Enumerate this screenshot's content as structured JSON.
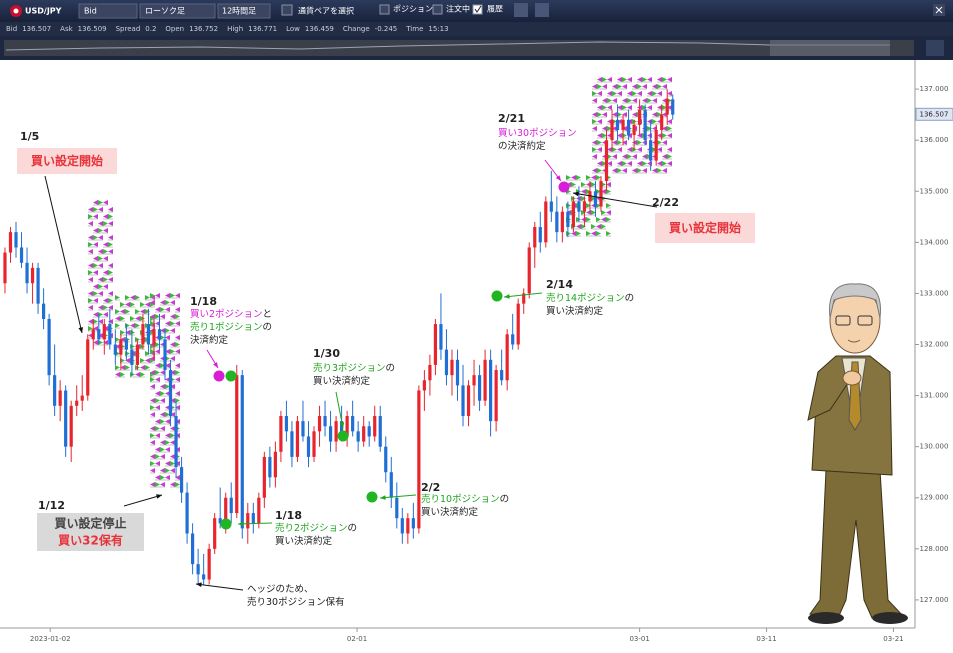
{
  "toolbar": {
    "symbol": "USD/JPY",
    "price_type": "Bid",
    "chart_type": "ローソク足",
    "period": "12時間足",
    "pair_select": "通貨ペアを選択",
    "checkboxes": [
      "ポジション",
      "注文中",
      "履歴"
    ]
  },
  "quote": [
    {
      "label": "Bid",
      "value": 136.507
    },
    {
      "label": "Ask",
      "value": 136.509
    },
    {
      "label": "Spread",
      "value": 0.2
    },
    {
      "label": "Open",
      "value": 136.752
    },
    {
      "label": "High",
      "value": 136.771
    },
    {
      "label": "Low",
      "value": 136.459
    },
    {
      "label": "Change",
      "value": -0.245
    },
    {
      "label": "Time",
      "value": "15:13"
    }
  ],
  "chart_data": {
    "type": "candlestick",
    "up_color": "#e8252d",
    "down_color": "#1f6fd6",
    "xlim": [
      0.1,
      165.9
    ],
    "xticks": [
      {
        "value": 9.2,
        "label": "2023-01-02"
      },
      {
        "value": 64.8,
        "label": "02-01"
      },
      {
        "value": 116,
        "label": "03-01"
      },
      {
        "value": 139,
        "label": "03-11"
      },
      {
        "value": 162,
        "label": "03-21"
      }
    ],
    "ylim": [
      126.45,
      137.57
    ],
    "yticks": [
      {
        "value": 127,
        "label": "127.000"
      },
      {
        "value": 128,
        "label": "128.000"
      },
      {
        "value": 129,
        "label": "129.000"
      },
      {
        "value": 130,
        "label": "130.000"
      },
      {
        "value": 131,
        "label": "131.000"
      },
      {
        "value": 132,
        "label": "132.000"
      },
      {
        "value": 133,
        "label": "133.000"
      },
      {
        "value": 134,
        "label": "134.000"
      },
      {
        "value": 135,
        "label": "135.000"
      },
      {
        "value": 136,
        "label": "136.000"
      },
      {
        "value": 137,
        "label": "137.000"
      }
    ],
    "last_price": 136.507,
    "x": [
      1,
      2,
      3,
      4,
      5,
      6,
      7,
      8,
      9,
      10,
      11,
      12,
      13,
      14,
      15,
      16,
      17,
      18,
      19,
      20,
      21,
      22,
      23,
      24,
      25,
      26,
      27,
      28,
      29,
      30,
      31,
      32,
      33,
      34,
      35,
      36,
      37,
      38,
      39,
      40,
      41,
      42,
      43,
      44,
      45,
      46,
      47,
      48,
      49,
      50,
      51,
      52,
      53,
      54,
      55,
      56,
      57,
      58,
      59,
      60,
      61,
      62,
      63,
      64,
      65,
      66,
      67,
      68,
      69,
      70,
      71,
      72,
      73,
      74,
      75,
      76,
      77,
      78,
      79,
      80,
      81,
      82,
      83,
      84,
      85,
      86,
      87,
      88,
      89,
      90,
      91,
      92,
      93,
      94,
      95,
      96,
      97,
      98,
      99,
      100,
      101,
      102,
      103,
      104,
      105,
      106,
      107,
      108,
      109,
      110,
      111,
      112,
      113,
      114,
      115,
      116,
      117,
      118,
      119,
      120,
      121,
      122
    ],
    "ohlc": [
      [
        133.2,
        133.9,
        133.0,
        133.8
      ],
      [
        133.8,
        134.3,
        133.6,
        134.2
      ],
      [
        134.2,
        134.4,
        133.7,
        133.9
      ],
      [
        133.9,
        134.2,
        133.5,
        133.6
      ],
      [
        133.6,
        133.9,
        133.0,
        133.2
      ],
      [
        133.2,
        133.6,
        132.8,
        133.5
      ],
      [
        133.5,
        133.6,
        132.6,
        132.8
      ],
      [
        132.8,
        133.1,
        132.3,
        132.5
      ],
      [
        132.5,
        132.6,
        131.2,
        131.4
      ],
      [
        131.4,
        132.0,
        130.6,
        130.8
      ],
      [
        130.8,
        131.3,
        130.5,
        131.1
      ],
      [
        131.1,
        131.2,
        129.8,
        130.0
      ],
      [
        130.0,
        130.9,
        129.7,
        130.8
      ],
      [
        130.8,
        131.2,
        130.6,
        130.9
      ],
      [
        130.9,
        131.4,
        130.7,
        131.0
      ],
      [
        131.0,
        132.2,
        130.9,
        132.1
      ],
      [
        132.1,
        132.5,
        131.9,
        132.3
      ],
      [
        132.3,
        132.6,
        132.0,
        132.1
      ],
      [
        132.1,
        132.5,
        131.8,
        132.4
      ],
      [
        132.4,
        132.7,
        131.9,
        132.0
      ],
      [
        132.0,
        132.3,
        131.6,
        131.8
      ],
      [
        131.8,
        132.2,
        131.5,
        132.1
      ],
      [
        132.1,
        132.4,
        131.7,
        131.9
      ],
      [
        131.9,
        132.3,
        131.4,
        131.6
      ],
      [
        131.6,
        132.1,
        131.5,
        132.0
      ],
      [
        132.0,
        132.6,
        131.9,
        132.4
      ],
      [
        132.4,
        132.7,
        131.8,
        132.0
      ],
      [
        132.0,
        132.5,
        131.7,
        132.3
      ],
      [
        132.3,
        132.6,
        131.9,
        132.1
      ],
      [
        132.1,
        132.3,
        131.3,
        131.5
      ],
      [
        131.5,
        131.7,
        130.4,
        130.6
      ],
      [
        130.6,
        130.9,
        129.4,
        129.6
      ],
      [
        129.6,
        129.8,
        128.9,
        129.1
      ],
      [
        129.1,
        129.3,
        128.1,
        128.3
      ],
      [
        128.3,
        128.5,
        127.5,
        127.7
      ],
      [
        127.7,
        128.0,
        127.3,
        127.5
      ],
      [
        127.5,
        127.9,
        127.3,
        127.4
      ],
      [
        127.4,
        128.1,
        127.3,
        128.0
      ],
      [
        128.0,
        128.7,
        127.9,
        128.6
      ],
      [
        128.6,
        129.2,
        128.4,
        128.5
      ],
      [
        128.5,
        129.1,
        128.3,
        129.0
      ],
      [
        129.0,
        129.3,
        128.5,
        128.7
      ],
      [
        128.7,
        131.6,
        128.6,
        131.4
      ],
      [
        131.4,
        131.5,
        128.2,
        128.4
      ],
      [
        128.4,
        128.9,
        128.1,
        128.7
      ],
      [
        128.7,
        128.9,
        128.3,
        128.5
      ],
      [
        128.5,
        129.1,
        128.4,
        129.0
      ],
      [
        129.0,
        129.9,
        128.8,
        129.8
      ],
      [
        129.8,
        130.0,
        129.2,
        129.4
      ],
      [
        129.4,
        130.1,
        129.2,
        129.9
      ],
      [
        129.9,
        130.7,
        129.7,
        130.6
      ],
      [
        130.6,
        130.9,
        130.1,
        130.3
      ],
      [
        130.3,
        130.5,
        129.6,
        129.8
      ],
      [
        129.8,
        130.6,
        129.7,
        130.5
      ],
      [
        130.5,
        130.9,
        130.1,
        130.2
      ],
      [
        130.2,
        130.5,
        129.6,
        129.8
      ],
      [
        129.8,
        130.4,
        129.7,
        130.3
      ],
      [
        130.3,
        130.8,
        130.0,
        130.6
      ],
      [
        130.6,
        130.9,
        130.2,
        130.4
      ],
      [
        130.4,
        130.7,
        129.9,
        130.1
      ],
      [
        130.1,
        130.6,
        129.9,
        130.5
      ],
      [
        130.5,
        130.8,
        130.1,
        130.2
      ],
      [
        130.2,
        130.7,
        130.0,
        130.6
      ],
      [
        130.6,
        130.9,
        130.2,
        130.3
      ],
      [
        130.3,
        130.5,
        129.9,
        130.1
      ],
      [
        130.1,
        130.6,
        130.0,
        130.4
      ],
      [
        130.4,
        130.5,
        130.0,
        130.2
      ],
      [
        130.2,
        130.8,
        130.1,
        130.6
      ],
      [
        130.6,
        130.8,
        129.9,
        130.0
      ],
      [
        130.0,
        130.2,
        129.3,
        129.5
      ],
      [
        129.5,
        129.8,
        128.8,
        129.0
      ],
      [
        129.0,
        129.3,
        128.4,
        128.6
      ],
      [
        128.6,
        128.8,
        128.1,
        128.3
      ],
      [
        128.3,
        128.7,
        128.1,
        128.6
      ],
      [
        128.6,
        128.9,
        128.2,
        128.4
      ],
      [
        128.4,
        131.2,
        128.3,
        131.1
      ],
      [
        131.1,
        131.5,
        130.7,
        131.3
      ],
      [
        131.3,
        131.8,
        131.0,
        131.6
      ],
      [
        131.6,
        132.5,
        131.4,
        132.4
      ],
      [
        132.4,
        133.0,
        131.7,
        131.9
      ],
      [
        131.9,
        132.3,
        131.2,
        131.4
      ],
      [
        131.4,
        131.9,
        131.0,
        131.7
      ],
      [
        131.7,
        131.9,
        130.9,
        131.2
      ],
      [
        131.2,
        131.6,
        130.4,
        130.6
      ],
      [
        130.6,
        131.3,
        130.4,
        131.2
      ],
      [
        131.2,
        131.7,
        130.8,
        131.4
      ],
      [
        131.4,
        131.6,
        130.7,
        130.9
      ],
      [
        130.9,
        131.9,
        130.8,
        131.7
      ],
      [
        131.7,
        131.9,
        130.2,
        130.5
      ],
      [
        130.5,
        131.6,
        130.3,
        131.5
      ],
      [
        131.5,
        131.9,
        131.2,
        131.3
      ],
      [
        131.3,
        132.3,
        131.1,
        132.2
      ],
      [
        132.2,
        132.6,
        131.9,
        132.0
      ],
      [
        132.0,
        132.9,
        131.9,
        132.8
      ],
      [
        132.8,
        133.1,
        132.6,
        133.0
      ],
      [
        133.0,
        134.0,
        132.9,
        133.9
      ],
      [
        133.9,
        134.4,
        133.5,
        134.3
      ],
      [
        134.3,
        134.6,
        133.8,
        134.0
      ],
      [
        134.0,
        134.9,
        133.9,
        134.8
      ],
      [
        134.8,
        135.4,
        134.4,
        134.6
      ],
      [
        134.6,
        134.9,
        134.0,
        134.2
      ],
      [
        134.2,
        134.7,
        134.0,
        134.6
      ],
      [
        134.6,
        134.8,
        134.1,
        134.3
      ],
      [
        134.3,
        134.9,
        134.2,
        134.8
      ],
      [
        134.8,
        135.1,
        134.4,
        134.6
      ],
      [
        134.6,
        134.9,
        134.3,
        134.8
      ],
      [
        134.8,
        135.2,
        134.6,
        135.0
      ],
      [
        135.0,
        135.2,
        134.5,
        134.7
      ],
      [
        134.7,
        135.3,
        134.6,
        135.2
      ],
      [
        135.2,
        136.2,
        135.0,
        136.0
      ],
      [
        136.0,
        136.6,
        135.8,
        136.4
      ],
      [
        136.4,
        136.7,
        136.0,
        136.2
      ],
      [
        136.2,
        136.5,
        135.9,
        136.4
      ],
      [
        136.4,
        136.6,
        136.0,
        136.1
      ],
      [
        136.1,
        136.4,
        135.8,
        136.3
      ],
      [
        136.3,
        136.8,
        136.1,
        136.6
      ],
      [
        136.6,
        136.7,
        135.9,
        136.0
      ],
      [
        136.0,
        136.4,
        135.4,
        135.6
      ],
      [
        135.6,
        136.3,
        135.5,
        136.2
      ],
      [
        136.2,
        136.7,
        136.0,
        136.5
      ],
      [
        136.5,
        137.0,
        136.3,
        136.8
      ],
      [
        136.8,
        136.9,
        136.4,
        136.5
      ]
    ],
    "annotations": [
      {
        "date": "1/5",
        "box": [
          [
            {
              "text": "買い設定開始",
              "color": "#e8333a"
            }
          ]
        ]
      },
      {
        "date": "1/12",
        "box": [
          [
            {
              "text": "買い設定停止",
              "color": "#444444"
            }
          ],
          [
            {
              "text": "買い32保有",
              "color": "#e8333a"
            }
          ]
        ]
      },
      {
        "date": "1/18",
        "lines": [
          [
            {
              "text": "買い2ポジション",
              "color": "#d61ed6"
            },
            {
              "text": "と",
              "color": "#222222"
            }
          ],
          [
            {
              "text": "売り1ポジション",
              "color": "#1fa51f"
            },
            {
              "text": "の",
              "color": "#222222"
            }
          ],
          [
            {
              "text": "決済約定",
              "color": "#222222"
            }
          ]
        ]
      },
      {
        "date": "1/18",
        "lines": [
          [
            {
              "text": "売り2ポジション",
              "color": "#1fa51f"
            },
            {
              "text": "の",
              "color": "#222222"
            }
          ],
          [
            {
              "text": "買い決済約定",
              "color": "#222222"
            }
          ]
        ]
      },
      {
        "lines": [
          [
            {
              "text": "ヘッジのため、",
              "color": "#222222"
            }
          ],
          [
            {
              "text": "売り30ポジション保有",
              "color": "#222222"
            }
          ]
        ]
      },
      {
        "date": "1/30",
        "lines": [
          [
            {
              "text": "売り3ポジション",
              "color": "#1fa51f"
            },
            {
              "text": "の",
              "color": "#222222"
            }
          ],
          [
            {
              "text": "買い決済約定",
              "color": "#222222"
            }
          ]
        ]
      },
      {
        "date": "2/2",
        "lines": [
          [
            {
              "text": "売り10ポジション",
              "color": "#1fa51f"
            },
            {
              "text": "の",
              "color": "#222222"
            }
          ],
          [
            {
              "text": "買い決済約定",
              "color": "#222222"
            }
          ]
        ]
      },
      {
        "date": "2/14",
        "lines": [
          [
            {
              "text": "売り14ポジション",
              "color": "#1fa51f"
            },
            {
              "text": "の",
              "color": "#222222"
            }
          ],
          [
            {
              "text": "買い決済約定",
              "color": "#222222"
            }
          ]
        ]
      },
      {
        "date": "2/21",
        "lines": [
          [
            {
              "text": "買い30ポジション",
              "color": "#d61ed6"
            }
          ],
          [
            {
              "text": "の決済約定",
              "color": "#222222"
            }
          ]
        ]
      },
      {
        "date": "2/22",
        "box": [
          [
            {
              "text": "買い設定開始",
              "color": "#e8333a"
            }
          ]
        ]
      }
    ]
  }
}
